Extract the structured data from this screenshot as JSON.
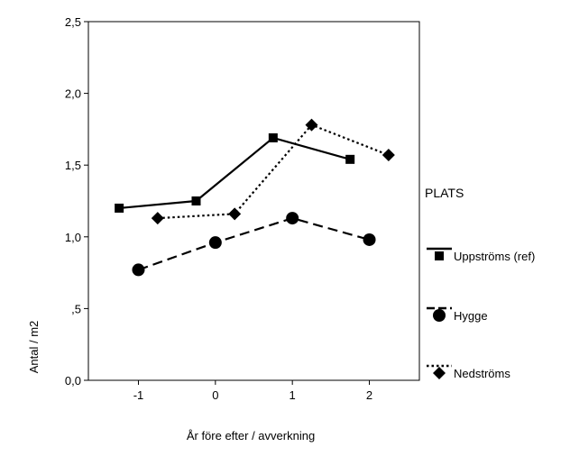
{
  "chart_data": {
    "type": "line",
    "title": "",
    "xlabel": "År före efter / avverkning",
    "ylabel": "Antal / m2",
    "xlim": [
      -1.65,
      2.65
    ],
    "ylim": [
      0,
      2.5
    ],
    "x_ticks": [
      -1,
      0,
      1,
      2
    ],
    "x_tick_labels": [
      "-1",
      "0",
      "1",
      "2"
    ],
    "y_ticks": [
      0,
      0.5,
      1,
      1.5,
      2,
      2.5
    ],
    "y_tick_labels": [
      "0,0",
      ",5",
      "1,0",
      "1,5",
      "2,0",
      "2,5"
    ],
    "legend_title": "PLATS",
    "legend_position": "right",
    "grid": false,
    "series": [
      {
        "name": "Uppströms (ref)",
        "line_style": "solid",
        "marker": "square",
        "points": [
          {
            "x": -1.25,
            "y": 1.2
          },
          {
            "x": -0.25,
            "y": 1.25
          },
          {
            "x": 0.75,
            "y": 1.69
          },
          {
            "x": 1.75,
            "y": 1.54
          }
        ]
      },
      {
        "name": "Hygge",
        "line_style": "dashed",
        "marker": "circle",
        "points": [
          {
            "x": -1.0,
            "y": 0.77
          },
          {
            "x": 0.0,
            "y": 0.96
          },
          {
            "x": 1.0,
            "y": 1.13
          },
          {
            "x": 2.0,
            "y": 0.98
          }
        ]
      },
      {
        "name": "Nedströms",
        "line_style": "dotted",
        "marker": "diamond",
        "points": [
          {
            "x": -0.75,
            "y": 1.13
          },
          {
            "x": 0.25,
            "y": 1.16
          },
          {
            "x": 1.25,
            "y": 1.78
          },
          {
            "x": 2.25,
            "y": 1.57
          }
        ]
      }
    ]
  }
}
